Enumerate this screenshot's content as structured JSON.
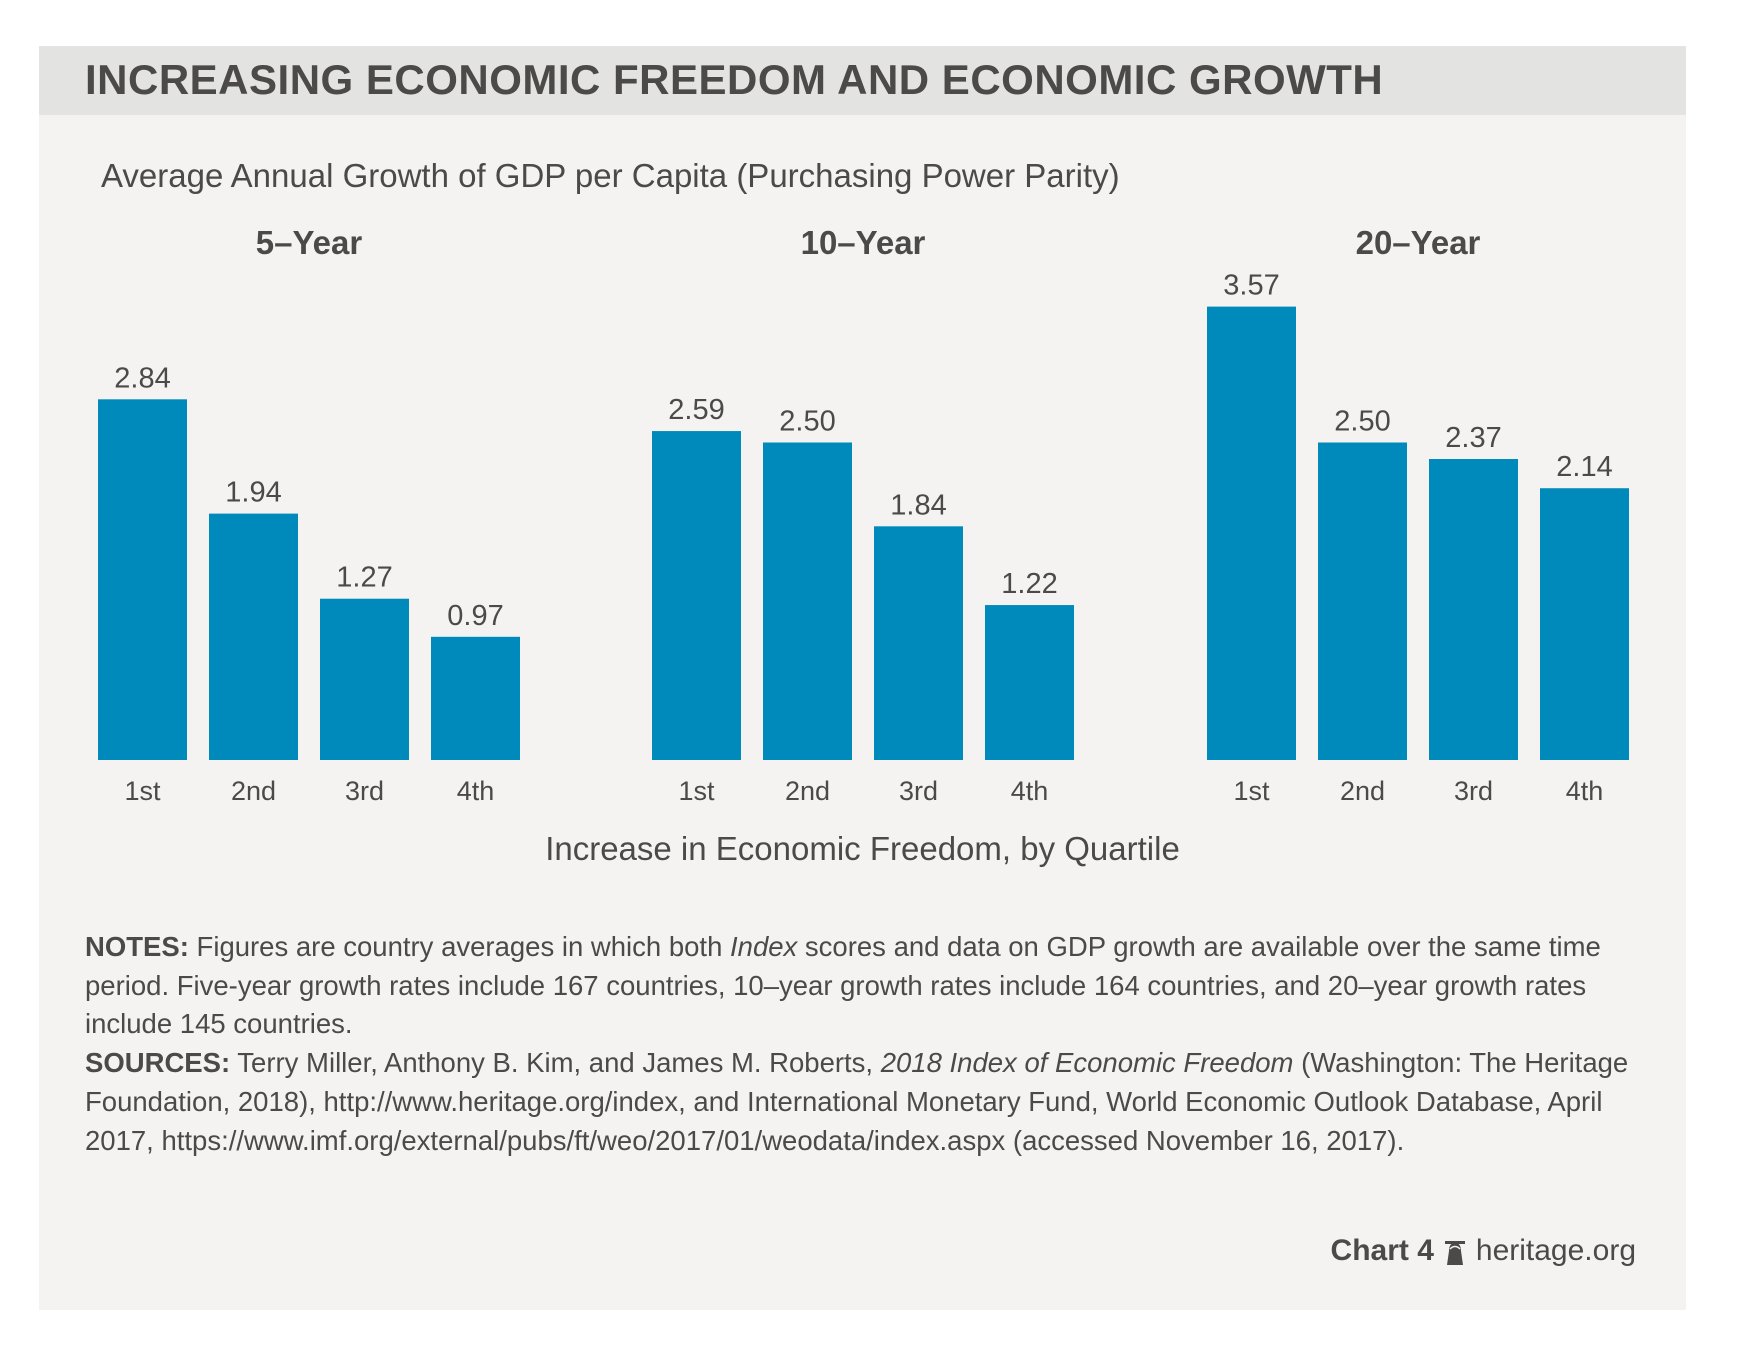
{
  "header": {
    "title": "INCREASING ECONOMIC FREEDOM AND ECONOMIC GROWTH"
  },
  "colors": {
    "bar": "#0089bb",
    "text": "#4b4a48",
    "panel_bg": "#f4f3f2",
    "header_bg": "#e3e3e2"
  },
  "chart_data": {
    "type": "bar",
    "title": "INCREASING ECONOMIC FREEDOM AND ECONOMIC GROWTH",
    "subtitle": "Average Annual Growth of GDP per Capita (Purchasing Power Parity)",
    "xlabel": "Increase in Economic Freedom, by Quartile",
    "ylabel": "",
    "ylim": [
      0,
      3.57
    ],
    "grid": false,
    "categories": [
      "1st",
      "2nd",
      "3rd",
      "4th"
    ],
    "panels": [
      {
        "name": "5–Year",
        "values": [
          2.84,
          1.94,
          1.27,
          0.97
        ],
        "labels": [
          "2.84",
          "1.94",
          "1.27",
          "0.97"
        ]
      },
      {
        "name": "10–Year",
        "values": [
          2.59,
          2.5,
          1.84,
          1.22
        ],
        "labels": [
          "2.59",
          "2.50",
          "1.84",
          "1.22"
        ]
      },
      {
        "name": "20–Year",
        "values": [
          3.57,
          2.5,
          2.37,
          2.14
        ],
        "labels": [
          "3.57",
          "2.50",
          "2.37",
          "2.14"
        ]
      }
    ]
  },
  "notes": {
    "notes_label": "NOTES:",
    "notes_text_1": " Figures are country averages in which both ",
    "notes_italic": "Index",
    "notes_text_2": " scores and data on GDP growth are available over the same time period. Five-year growth rates include 167 countries, 10–year growth rates include 164 countries, and 20–year growth rates include 145 countries.",
    "sources_label": "SOURCES:",
    "sources_text_1": " Terry Miller, Anthony B. Kim, and James M. Roberts, ",
    "sources_italic": "2018 Index of Economic Freedom",
    "sources_text_2": " (Washington: The Heritage Foundation, 2018), http://www.heritage.org/index, and International Monetary Fund, World Economic Outlook Database, April 2017, https://www.imf.org/external/pubs/ft/weo/2017/01/weodata/index.aspx (accessed November 16, 2017)."
  },
  "footer": {
    "chart_number": "Chart 4",
    "icon": "liberty-bell-icon",
    "site": "heritage.org"
  }
}
